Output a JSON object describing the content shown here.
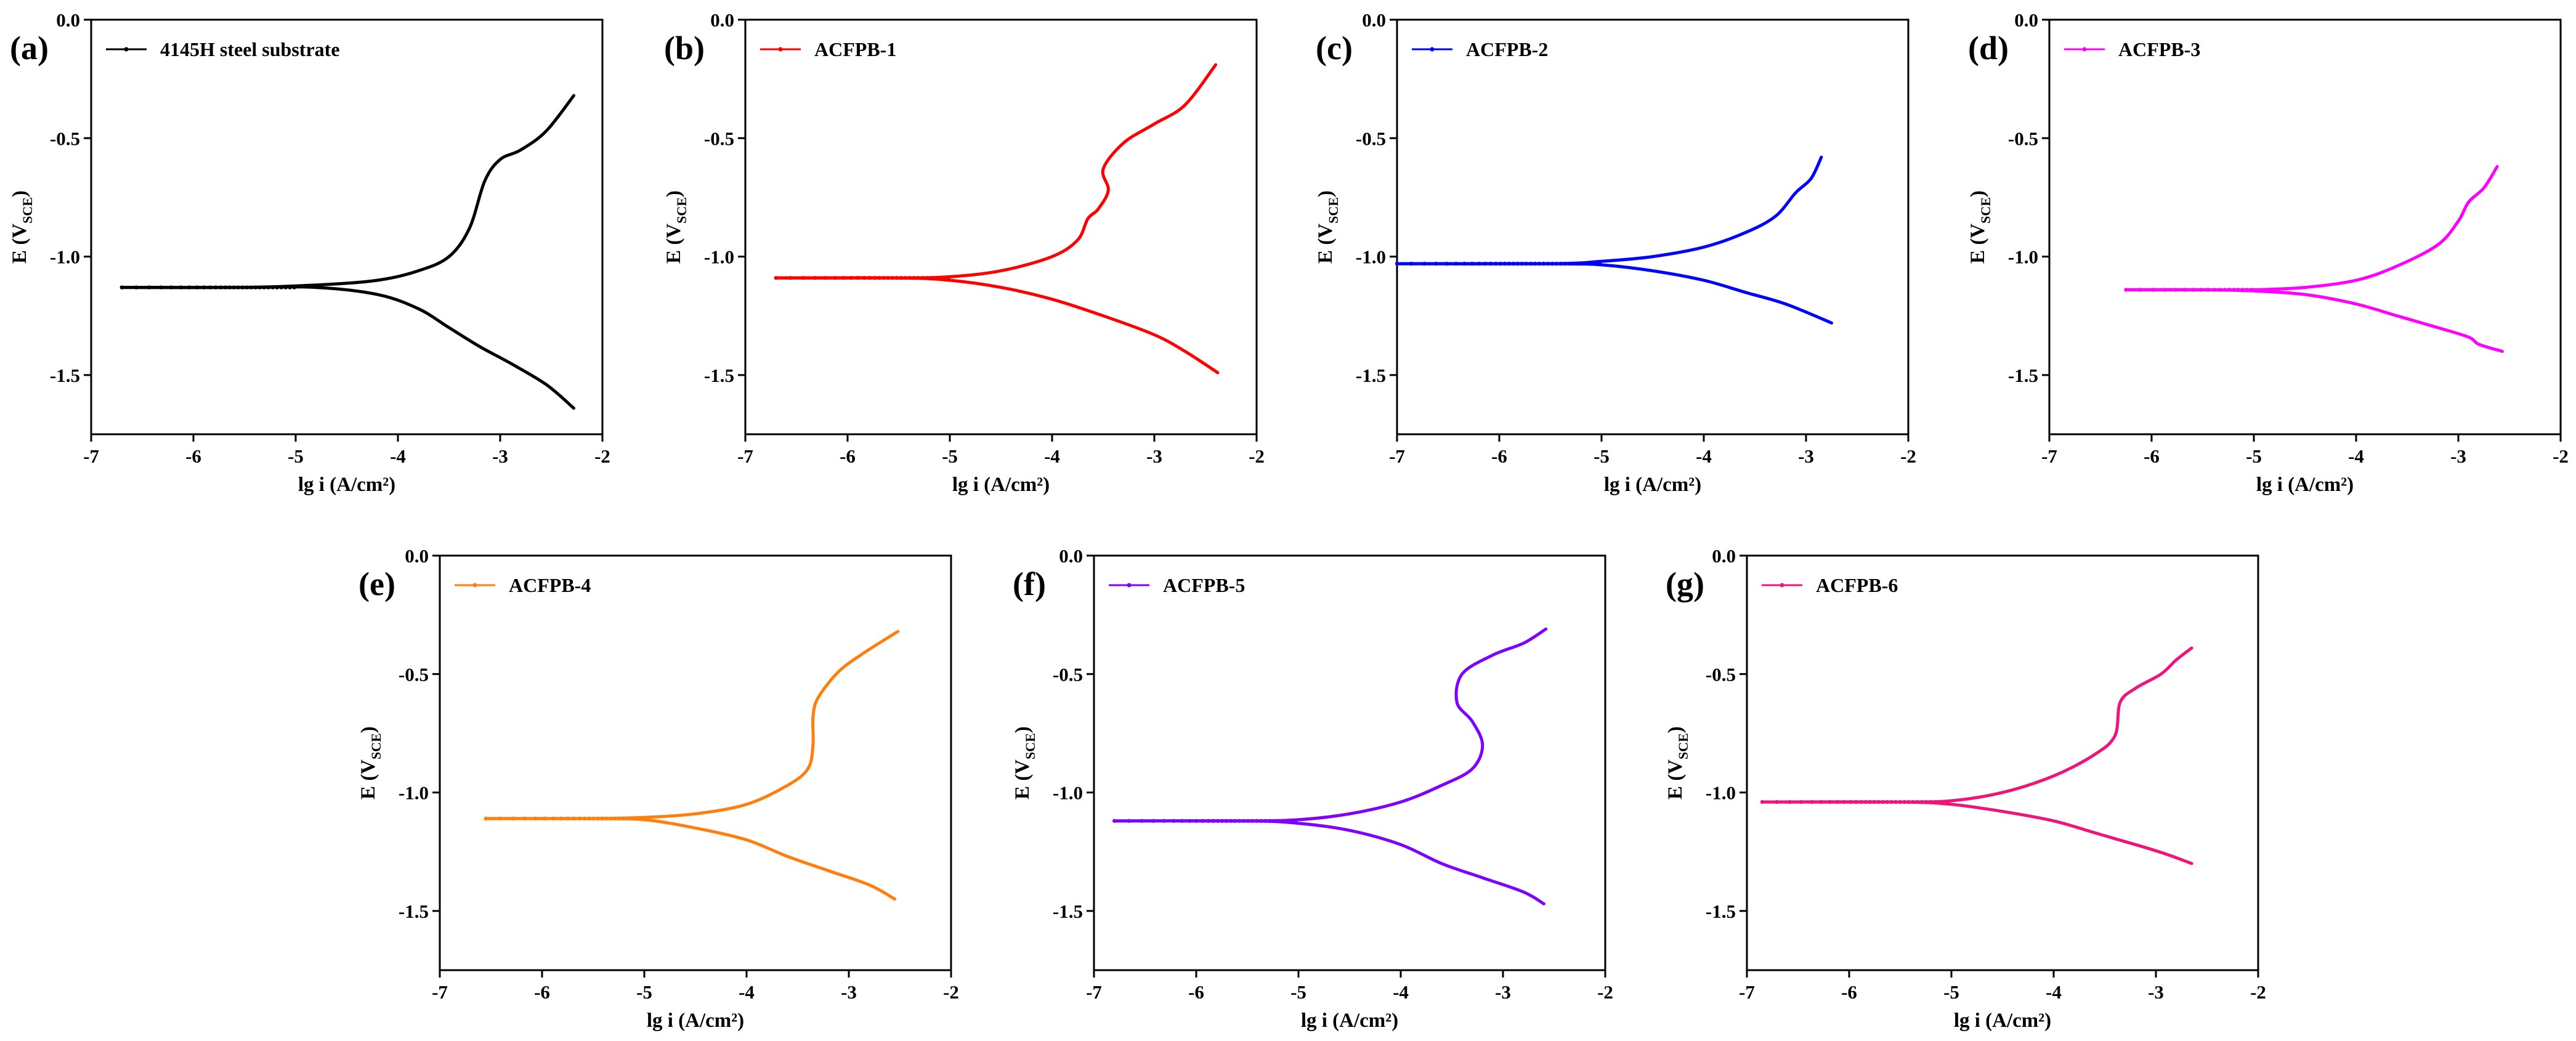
{
  "chart_data": [
    {
      "panel": "(a)",
      "type": "line",
      "title": "",
      "xlabel": "lg i (A/cm²)",
      "ylabel": "E (V_SCE)",
      "xlim": [
        -7,
        -2
      ],
      "ylim": [
        -1.75,
        0
      ],
      "xticks": [
        -7,
        -6,
        -5,
        -4,
        -3,
        -2
      ],
      "yticks": [
        0.0,
        -0.5,
        -1.0,
        -1.5
      ],
      "xtick_labels": [
        "-7",
        "-6",
        "-5",
        "-4",
        "-3",
        "-2"
      ],
      "ytick_labels": [
        "0.0",
        "-0.5",
        "-1.0",
        "-1.5"
      ],
      "legend_position": "top-left",
      "color": "#000000",
      "series": [
        {
          "name": "4145H steel substrate",
          "anodic": [
            [
              -6.7,
              -1.13
            ],
            [
              -5.5,
              -1.13
            ],
            [
              -4.8,
              -1.12
            ],
            [
              -4.2,
              -1.1
            ],
            [
              -3.8,
              -1.06
            ],
            [
              -3.5,
              -1.0
            ],
            [
              -3.3,
              -0.88
            ],
            [
              -3.15,
              -0.68
            ],
            [
              -3.0,
              -0.59
            ],
            [
              -2.8,
              -0.55
            ],
            [
              -2.55,
              -0.47
            ],
            [
              -2.28,
              -0.32
            ]
          ],
          "cathodic": [
            [
              -6.7,
              -1.13
            ],
            [
              -5.5,
              -1.13
            ],
            [
              -4.8,
              -1.13
            ],
            [
              -4.2,
              -1.16
            ],
            [
              -3.8,
              -1.22
            ],
            [
              -3.5,
              -1.3
            ],
            [
              -3.2,
              -1.38
            ],
            [
              -2.9,
              -1.45
            ],
            [
              -2.55,
              -1.54
            ],
            [
              -2.28,
              -1.64
            ]
          ]
        }
      ]
    },
    {
      "panel": "(b)",
      "type": "line",
      "title": "",
      "xlabel": "lg i (A/cm²)",
      "ylabel": "E (V_SCE)",
      "xlim": [
        -7,
        -2
      ],
      "ylim": [
        -1.75,
        0
      ],
      "xticks": [
        -7,
        -6,
        -5,
        -4,
        -3,
        -2
      ],
      "yticks": [
        0.0,
        -0.5,
        -1.0,
        -1.5
      ],
      "xtick_labels": [
        "-7",
        "-6",
        "-5",
        "-4",
        "-3",
        "-2"
      ],
      "ytick_labels": [
        "0.0",
        "-0.5",
        "-1.0",
        "-1.5"
      ],
      "legend_position": "top-left",
      "color": "#ff0000",
      "series": [
        {
          "name": "ACFPB-1",
          "anodic": [
            [
              -6.7,
              -1.09
            ],
            [
              -5.5,
              -1.09
            ],
            [
              -5.0,
              -1.085
            ],
            [
              -4.5,
              -1.06
            ],
            [
              -4.0,
              -1.0
            ],
            [
              -3.75,
              -0.93
            ],
            [
              -3.65,
              -0.84
            ],
            [
              -3.55,
              -0.8
            ],
            [
              -3.45,
              -0.72
            ],
            [
              -3.5,
              -0.63
            ],
            [
              -3.3,
              -0.52
            ],
            [
              -3.0,
              -0.44
            ],
            [
              -2.7,
              -0.36
            ],
            [
              -2.4,
              -0.19
            ]
          ],
          "cathodic": [
            [
              -6.7,
              -1.09
            ],
            [
              -5.5,
              -1.09
            ],
            [
              -5.0,
              -1.1
            ],
            [
              -4.5,
              -1.13
            ],
            [
              -4.0,
              -1.18
            ],
            [
              -3.5,
              -1.25
            ],
            [
              -3.0,
              -1.33
            ],
            [
              -2.7,
              -1.4
            ],
            [
              -2.38,
              -1.49
            ]
          ]
        }
      ]
    },
    {
      "panel": "(c)",
      "type": "line",
      "title": "",
      "xlabel": "lg i (A/cm²)",
      "ylabel": "E (V_SCE)",
      "xlim": [
        -7,
        -2
      ],
      "ylim": [
        -1.75,
        0
      ],
      "xticks": [
        -7,
        -6,
        -5,
        -4,
        -3,
        -2
      ],
      "yticks": [
        0.0,
        -0.5,
        -1.0,
        -1.5
      ],
      "xtick_labels": [
        "-7",
        "-6",
        "-5",
        "-4",
        "-3",
        "-2"
      ],
      "ytick_labels": [
        "0.0",
        "-0.5",
        "-1.0",
        "-1.5"
      ],
      "legend_position": "top-left",
      "color": "#0000ff",
      "series": [
        {
          "name": "ACFPB-2",
          "anodic": [
            [
              -7.0,
              -1.03
            ],
            [
              -5.5,
              -1.03
            ],
            [
              -5.0,
              -1.02
            ],
            [
              -4.5,
              -1.0
            ],
            [
              -4.0,
              -0.96
            ],
            [
              -3.6,
              -0.9
            ],
            [
              -3.3,
              -0.83
            ],
            [
              -3.1,
              -0.73
            ],
            [
              -2.95,
              -0.67
            ],
            [
              -2.85,
              -0.58
            ]
          ],
          "cathodic": [
            [
              -7.0,
              -1.03
            ],
            [
              -5.5,
              -1.03
            ],
            [
              -5.0,
              -1.035
            ],
            [
              -4.5,
              -1.06
            ],
            [
              -4.0,
              -1.1
            ],
            [
              -3.6,
              -1.15
            ],
            [
              -3.2,
              -1.2
            ],
            [
              -2.75,
              -1.28
            ]
          ]
        }
      ]
    },
    {
      "panel": "(d)",
      "type": "line",
      "title": "",
      "xlabel": "lg i (A/cm²)",
      "ylabel": "E (V_SCE)",
      "xlim": [
        -7,
        -2
      ],
      "ylim": [
        -1.75,
        0
      ],
      "xticks": [
        -7,
        -6,
        -5,
        -4,
        -3,
        -2
      ],
      "yticks": [
        0.0,
        -0.5,
        -1.0,
        -1.5
      ],
      "xtick_labels": [
        "-7",
        "-6",
        "-5",
        "-4",
        "-3",
        "-2"
      ],
      "ytick_labels": [
        "0.0",
        "-0.5",
        "-1.0",
        "-1.5"
      ],
      "legend_position": "top-left",
      "color": "#ff00ff",
      "series": [
        {
          "name": "ACFPB-3",
          "anodic": [
            [
              -6.25,
              -1.14
            ],
            [
              -5.5,
              -1.14
            ],
            [
              -5.0,
              -1.14
            ],
            [
              -4.5,
              -1.13
            ],
            [
              -4.0,
              -1.1
            ],
            [
              -3.6,
              -1.04
            ],
            [
              -3.2,
              -0.95
            ],
            [
              -3.0,
              -0.85
            ],
            [
              -2.9,
              -0.77
            ],
            [
              -2.75,
              -0.71
            ],
            [
              -2.62,
              -0.62
            ]
          ],
          "cathodic": [
            [
              -6.25,
              -1.14
            ],
            [
              -5.5,
              -1.14
            ],
            [
              -5.0,
              -1.145
            ],
            [
              -4.5,
              -1.16
            ],
            [
              -4.0,
              -1.2
            ],
            [
              -3.6,
              -1.25
            ],
            [
              -3.2,
              -1.3
            ],
            [
              -2.9,
              -1.34
            ],
            [
              -2.8,
              -1.37
            ],
            [
              -2.57,
              -1.4
            ]
          ]
        }
      ]
    },
    {
      "panel": "(e)",
      "type": "line",
      "title": "",
      "xlabel": "lg i (A/cm²)",
      "ylabel": "E (V_SCE)",
      "xlim": [
        -7,
        -2
      ],
      "ylim": [
        -1.75,
        0
      ],
      "xticks": [
        -7,
        -6,
        -5,
        -4,
        -3,
        -2
      ],
      "yticks": [
        0.0,
        -0.5,
        -1.0,
        -1.5
      ],
      "xtick_labels": [
        "-7",
        "-6",
        "-5",
        "-4",
        "-3",
        "-2"
      ],
      "ytick_labels": [
        "0.0",
        "-0.5",
        "-1.0",
        "-1.5"
      ],
      "legend_position": "top-left",
      "color": "#ff7f0e",
      "series": [
        {
          "name": "ACFPB-4",
          "anodic": [
            [
              -6.55,
              -1.11
            ],
            [
              -5.5,
              -1.11
            ],
            [
              -5.0,
              -1.105
            ],
            [
              -4.5,
              -1.09
            ],
            [
              -4.0,
              -1.05
            ],
            [
              -3.6,
              -0.97
            ],
            [
              -3.4,
              -0.9
            ],
            [
              -3.35,
              -0.8
            ],
            [
              -3.35,
              -0.68
            ],
            [
              -3.3,
              -0.6
            ],
            [
              -3.1,
              -0.49
            ],
            [
              -2.85,
              -0.41
            ],
            [
              -2.52,
              -0.32
            ]
          ],
          "cathodic": [
            [
              -6.55,
              -1.11
            ],
            [
              -5.5,
              -1.11
            ],
            [
              -5.0,
              -1.115
            ],
            [
              -4.5,
              -1.15
            ],
            [
              -4.0,
              -1.2
            ],
            [
              -3.6,
              -1.27
            ],
            [
              -3.2,
              -1.33
            ],
            [
              -2.8,
              -1.39
            ],
            [
              -2.55,
              -1.45
            ]
          ]
        }
      ]
    },
    {
      "panel": "(f)",
      "type": "line",
      "title": "",
      "xlabel": "lg i (A/cm²)",
      "ylabel": "E (V_SCE)",
      "xlim": [
        -7,
        -2
      ],
      "ylim": [
        -1.75,
        0
      ],
      "xticks": [
        -7,
        -6,
        -5,
        -4,
        -3,
        -2
      ],
      "yticks": [
        0.0,
        -0.5,
        -1.0,
        -1.5
      ],
      "xtick_labels": [
        "-7",
        "-6",
        "-5",
        "-4",
        "-3",
        "-2"
      ],
      "ytick_labels": [
        "0.0",
        "-0.5",
        "-1.0",
        "-1.5"
      ],
      "legend_position": "top-left",
      "color": "#7f00ff",
      "series": [
        {
          "name": "ACFPB-5",
          "anodic": [
            [
              -6.8,
              -1.12
            ],
            [
              -5.5,
              -1.12
            ],
            [
              -5.0,
              -1.115
            ],
            [
              -4.5,
              -1.09
            ],
            [
              -4.0,
              -1.04
            ],
            [
              -3.6,
              -0.97
            ],
            [
              -3.3,
              -0.9
            ],
            [
              -3.2,
              -0.8
            ],
            [
              -3.3,
              -0.7
            ],
            [
              -3.45,
              -0.62
            ],
            [
              -3.4,
              -0.5
            ],
            [
              -3.1,
              -0.42
            ],
            [
              -2.8,
              -0.37
            ],
            [
              -2.58,
              -0.31
            ]
          ],
          "cathodic": [
            [
              -6.8,
              -1.12
            ],
            [
              -5.5,
              -1.12
            ],
            [
              -5.0,
              -1.13
            ],
            [
              -4.5,
              -1.16
            ],
            [
              -4.0,
              -1.22
            ],
            [
              -3.6,
              -1.3
            ],
            [
              -3.2,
              -1.36
            ],
            [
              -2.8,
              -1.42
            ],
            [
              -2.6,
              -1.47
            ]
          ]
        }
      ]
    },
    {
      "panel": "(g)",
      "type": "line",
      "title": "",
      "xlabel": "lg i (A/cm²)",
      "ylabel": "E (V_SCE)",
      "xlim": [
        -7,
        -2
      ],
      "ylim": [
        -1.75,
        0
      ],
      "xticks": [
        -7,
        -6,
        -5,
        -4,
        -3,
        -2
      ],
      "yticks": [
        0.0,
        -0.5,
        -1.0,
        -1.5
      ],
      "xtick_labels": [
        "-7",
        "-6",
        "-5",
        "-4",
        "-3",
        "-2"
      ],
      "ytick_labels": [
        "0.0",
        "-0.5",
        "-1.0",
        "-1.5"
      ],
      "legend_position": "top-left",
      "color": "#f0147a",
      "series": [
        {
          "name": "ACFPB-6",
          "anodic": [
            [
              -6.85,
              -1.04
            ],
            [
              -5.5,
              -1.04
            ],
            [
              -5.0,
              -1.035
            ],
            [
              -4.5,
              -1.0
            ],
            [
              -4.0,
              -0.93
            ],
            [
              -3.6,
              -0.84
            ],
            [
              -3.4,
              -0.76
            ],
            [
              -3.35,
              -0.62
            ],
            [
              -3.2,
              -0.56
            ],
            [
              -2.95,
              -0.5
            ],
            [
              -2.8,
              -0.44
            ],
            [
              -2.65,
              -0.39
            ]
          ],
          "cathodic": [
            [
              -6.85,
              -1.04
            ],
            [
              -5.5,
              -1.04
            ],
            [
              -5.0,
              -1.05
            ],
            [
              -4.5,
              -1.08
            ],
            [
              -4.0,
              -1.12
            ],
            [
              -3.6,
              -1.17
            ],
            [
              -3.2,
              -1.22
            ],
            [
              -2.9,
              -1.26
            ],
            [
              -2.65,
              -1.3
            ]
          ]
        }
      ]
    }
  ]
}
